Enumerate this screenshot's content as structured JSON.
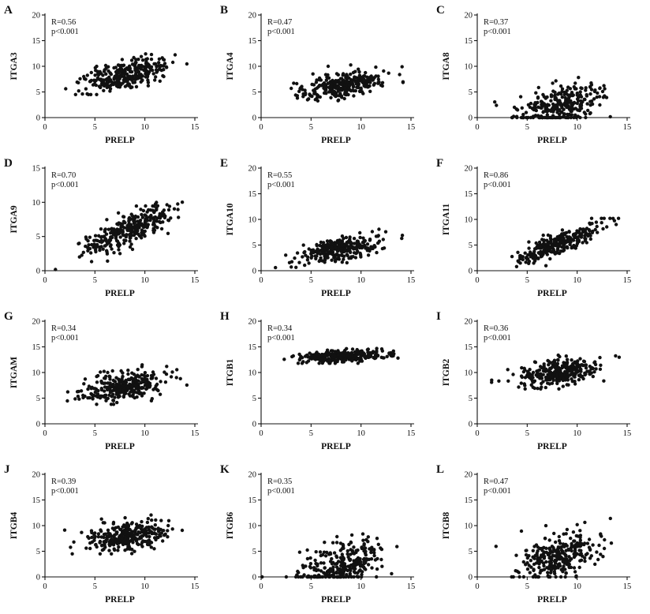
{
  "figure": {
    "description": "Correlation scatter plots of PRELP expression versus integrin gene expression",
    "background": "#ffffff"
  },
  "chart_data": [
    {
      "type": "scatter",
      "panel": "A",
      "ylabel": "ITGA3",
      "xlabel": "PRELP",
      "annotation": {
        "r_label": "R=0.56",
        "p_label": "p<0.001"
      },
      "xlim": [
        0,
        15
      ],
      "ylim": [
        0,
        20
      ],
      "xticks": [
        0,
        5,
        10,
        15
      ],
      "yticks": [
        0,
        5,
        10,
        15,
        20
      ],
      "legend": false,
      "grid": false,
      "n": 300,
      "r": 0.56,
      "x_mean": 8.2,
      "x_sd": 2.1,
      "x_clamp": [
        0.1,
        14.2
      ],
      "y_mean": 8.3,
      "y_sd": 1.6,
      "y_clamp": [
        4.5,
        13.8
      ],
      "seed": 101
    },
    {
      "type": "scatter",
      "panel": "B",
      "ylabel": "ITGA4",
      "xlabel": "PRELP",
      "annotation": {
        "r_label": "R=0.47",
        "p_label": "p<0.001"
      },
      "xlim": [
        0,
        15
      ],
      "ylim": [
        0,
        20
      ],
      "xticks": [
        0,
        5,
        10,
        15
      ],
      "yticks": [
        0,
        5,
        10,
        15,
        20
      ],
      "legend": false,
      "grid": false,
      "n": 300,
      "r": 0.47,
      "x_mean": 8.2,
      "x_sd": 2.1,
      "x_clamp": [
        0.1,
        14.2
      ],
      "y_mean": 6.2,
      "y_sd": 1.3,
      "y_clamp": [
        2.8,
        10.5
      ],
      "seed": 102
    },
    {
      "type": "scatter",
      "panel": "C",
      "ylabel": "ITGA8",
      "xlabel": "PRELP",
      "annotation": {
        "r_label": "R=0.37",
        "p_label": "p<0.001"
      },
      "xlim": [
        0,
        15
      ],
      "ylim": [
        0,
        20
      ],
      "xticks": [
        0,
        5,
        10,
        15
      ],
      "yticks": [
        0,
        5,
        10,
        15,
        20
      ],
      "legend": false,
      "grid": false,
      "n": 300,
      "r": 0.37,
      "x_mean": 8.2,
      "x_sd": 2.1,
      "x_clamp": [
        0.1,
        14.2
      ],
      "y_mean": 2.3,
      "y_sd": 2.0,
      "y_clamp": [
        0,
        9.3
      ],
      "seed": 103
    },
    {
      "type": "scatter",
      "panel": "D",
      "ylabel": "ITGA9",
      "xlabel": "PRELP",
      "annotation": {
        "r_label": "R=0.70",
        "p_label": "p<0.001"
      },
      "xlim": [
        0,
        15
      ],
      "ylim": [
        0,
        15
      ],
      "xticks": [
        0,
        5,
        10,
        15
      ],
      "yticks": [
        0,
        5,
        10,
        15
      ],
      "legend": false,
      "grid": false,
      "n": 300,
      "r": 0.7,
      "x_mean": 8.2,
      "x_sd": 2.1,
      "x_clamp": [
        0.1,
        14.2
      ],
      "y_mean": 5.8,
      "y_sd": 1.7,
      "y_clamp": [
        0,
        10.3
      ],
      "seed": 104
    },
    {
      "type": "scatter",
      "panel": "E",
      "ylabel": "ITGA10",
      "xlabel": "PRELP",
      "annotation": {
        "r_label": "R=0.55",
        "p_label": "p<0.001"
      },
      "xlim": [
        0,
        15
      ],
      "ylim": [
        0,
        20
      ],
      "xticks": [
        0,
        5,
        10,
        15
      ],
      "yticks": [
        0,
        5,
        10,
        15,
        20
      ],
      "legend": false,
      "grid": false,
      "n": 300,
      "r": 0.55,
      "x_mean": 8.2,
      "x_sd": 2.1,
      "x_clamp": [
        0.1,
        14.2
      ],
      "y_mean": 4.4,
      "y_sd": 1.2,
      "y_clamp": [
        0.5,
        8.2
      ],
      "seed": 105
    },
    {
      "type": "scatter",
      "panel": "F",
      "ylabel": "ITGA11",
      "xlabel": "PRELP",
      "annotation": {
        "r_label": "R=0.86",
        "p_label": "p<0.001"
      },
      "xlim": [
        0,
        15
      ],
      "ylim": [
        0,
        20
      ],
      "xticks": [
        0,
        5,
        10,
        15
      ],
      "yticks": [
        0,
        5,
        10,
        15,
        20
      ],
      "legend": false,
      "grid": false,
      "n": 300,
      "r": 0.86,
      "x_mean": 8.2,
      "x_sd": 2.1,
      "x_clamp": [
        0.1,
        14.2
      ],
      "y_mean": 5.4,
      "y_sd": 1.9,
      "y_clamp": [
        0.8,
        10.2
      ],
      "seed": 106
    },
    {
      "type": "scatter",
      "panel": "G",
      "ylabel": "ITGAM",
      "xlabel": "PRELP",
      "annotation": {
        "r_label": "R=0.34",
        "p_label": "p<0.001"
      },
      "xlim": [
        0,
        15
      ],
      "ylim": [
        0,
        20
      ],
      "xticks": [
        0,
        5,
        10,
        15
      ],
      "yticks": [
        0,
        5,
        10,
        15,
        20
      ],
      "legend": false,
      "grid": false,
      "n": 300,
      "r": 0.34,
      "x_mean": 8.2,
      "x_sd": 2.1,
      "x_clamp": [
        0.1,
        14.2
      ],
      "y_mean": 7.4,
      "y_sd": 1.5,
      "y_clamp": [
        3.8,
        12
      ],
      "seed": 107
    },
    {
      "type": "scatter",
      "panel": "H",
      "ylabel": "ITGB1",
      "xlabel": "PRELP",
      "annotation": {
        "r_label": "R=0.34",
        "p_label": "p<0.001"
      },
      "xlim": [
        0,
        15
      ],
      "ylim": [
        0,
        20
      ],
      "xticks": [
        0,
        5,
        10,
        15
      ],
      "yticks": [
        0,
        5,
        10,
        15,
        20
      ],
      "legend": false,
      "grid": false,
      "n": 300,
      "r": 0.34,
      "x_mean": 8.2,
      "x_sd": 2.1,
      "x_clamp": [
        0.1,
        14.2
      ],
      "y_mean": 13.2,
      "y_sd": 0.55,
      "y_clamp": [
        11.8,
        14.8
      ],
      "seed": 108
    },
    {
      "type": "scatter",
      "panel": "I",
      "ylabel": "ITGB2",
      "xlabel": "PRELP",
      "annotation": {
        "r_label": "R=0.36",
        "p_label": "p<0.001"
      },
      "xlim": [
        0,
        15
      ],
      "ylim": [
        0,
        20
      ],
      "xticks": [
        0,
        5,
        10,
        15
      ],
      "yticks": [
        0,
        5,
        10,
        15,
        20
      ],
      "legend": false,
      "grid": false,
      "n": 300,
      "r": 0.36,
      "x_mean": 8.2,
      "x_sd": 2.1,
      "x_clamp": [
        0.1,
        14.2
      ],
      "y_mean": 10.0,
      "y_sd": 1.3,
      "y_clamp": [
        6.8,
        13.6
      ],
      "seed": 109
    },
    {
      "type": "scatter",
      "panel": "J",
      "ylabel": "ITGB4",
      "xlabel": "PRELP",
      "annotation": {
        "r_label": "R=0.39",
        "p_label": "p<0.001"
      },
      "xlim": [
        0,
        15
      ],
      "ylim": [
        0,
        20
      ],
      "xticks": [
        0,
        5,
        10,
        15
      ],
      "yticks": [
        0,
        5,
        10,
        15,
        20
      ],
      "legend": false,
      "grid": false,
      "n": 300,
      "r": 0.39,
      "x_mean": 8.2,
      "x_sd": 2.1,
      "x_clamp": [
        0.1,
        14.2
      ],
      "y_mean": 8.0,
      "y_sd": 1.5,
      "y_clamp": [
        4.5,
        13.6
      ],
      "seed": 110
    },
    {
      "type": "scatter",
      "panel": "K",
      "ylabel": "ITGB6",
      "xlabel": "PRELP",
      "annotation": {
        "r_label": "R=0.35",
        "p_label": "p<0.001"
      },
      "xlim": [
        0,
        15
      ],
      "ylim": [
        0,
        20
      ],
      "xticks": [
        0,
        5,
        10,
        15
      ],
      "yticks": [
        0,
        5,
        10,
        15,
        20
      ],
      "legend": false,
      "grid": false,
      "n": 300,
      "r": 0.35,
      "x_mean": 8.2,
      "x_sd": 2.1,
      "x_clamp": [
        0.1,
        14.2
      ],
      "y_mean": 2.0,
      "y_sd": 2.4,
      "y_clamp": [
        0,
        11.4
      ],
      "seed": 111
    },
    {
      "type": "scatter",
      "panel": "L",
      "ylabel": "ITGB8",
      "xlabel": "PRELP",
      "annotation": {
        "r_label": "R=0.47",
        "p_label": "p<0.001"
      },
      "xlim": [
        0,
        15
      ],
      "ylim": [
        0,
        20
      ],
      "xticks": [
        0,
        5,
        10,
        15
      ],
      "yticks": [
        0,
        5,
        10,
        15,
        20
      ],
      "legend": false,
      "grid": false,
      "n": 300,
      "r": 0.47,
      "x_mean": 8.2,
      "x_sd": 2.1,
      "x_clamp": [
        0.1,
        14.2
      ],
      "y_mean": 4.0,
      "y_sd": 2.4,
      "y_clamp": [
        0,
        11.4
      ],
      "seed": 112
    }
  ]
}
